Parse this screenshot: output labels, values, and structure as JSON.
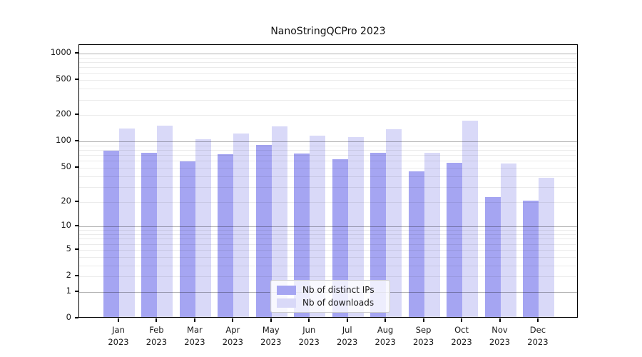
{
  "title": "NanoStringQCPro 2023",
  "chart_data": {
    "type": "bar",
    "title": "NanoStringQCPro 2023",
    "scale": "log1p",
    "xlabel": "",
    "ylabel": "",
    "ylim": [
      0,
      1000
    ],
    "yticks": [
      1000,
      500,
      200,
      100,
      50,
      20,
      10,
      5,
      2,
      1,
      0
    ],
    "grid": true,
    "legend_position": "bottom-center",
    "categories": [
      "Jan",
      "Feb",
      "Mar",
      "Apr",
      "May",
      "Jun",
      "Jul",
      "Aug",
      "Sep",
      "Oct",
      "Nov",
      "Dec"
    ],
    "year": "2023",
    "series": [
      {
        "name": "Nb of distinct IPs",
        "color": "#a5a5f2",
        "values": [
          75,
          72,
          57,
          69,
          88,
          70,
          60,
          72,
          44,
          55,
          22,
          20
        ]
      },
      {
        "name": "Nb of downloads",
        "color": "#d9d9f8",
        "values": [
          135,
          147,
          103,
          118,
          143,
          112,
          108,
          133,
          71,
          166,
          54,
          37
        ]
      }
    ]
  }
}
